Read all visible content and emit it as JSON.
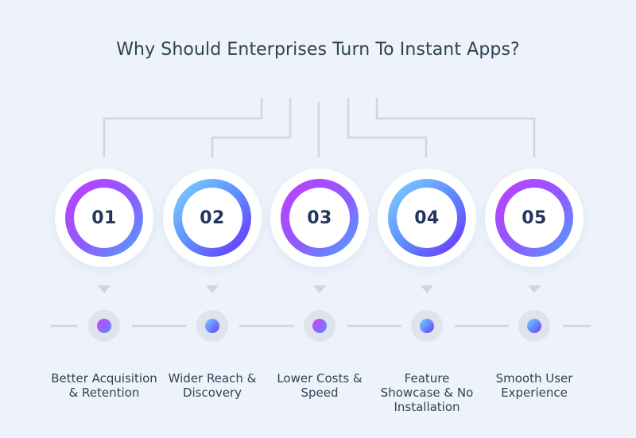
{
  "title": "Why Should Enterprises Turn To Instant Apps?",
  "steps": [
    {
      "number": "01",
      "label_line1": "Better Acquisition",
      "label_line2": "& Retention",
      "label_line3": ""
    },
    {
      "number": "02",
      "label_line1": "Wider Reach &",
      "label_line2": "Discovery",
      "label_line3": ""
    },
    {
      "number": "03",
      "label_line1": "Lower Costs &",
      "label_line2": "Speed",
      "label_line3": ""
    },
    {
      "number": "04",
      "label_line1": "Feature",
      "label_line2": "Showcase & No",
      "label_line3": "Installation"
    },
    {
      "number": "05",
      "label_line1": "Smooth User",
      "label_line2": "Experience",
      "label_line3": ""
    }
  ],
  "colors": {
    "background": "#eef3fb",
    "connector": "#cfd6df",
    "text": "#2e4356",
    "number": "#22355c",
    "gradient_pink": "#c23dff",
    "gradient_blue": "#4fa4ff",
    "gradient_cyan": "#7fd6ff",
    "gradient_violet": "#6b2cff"
  }
}
